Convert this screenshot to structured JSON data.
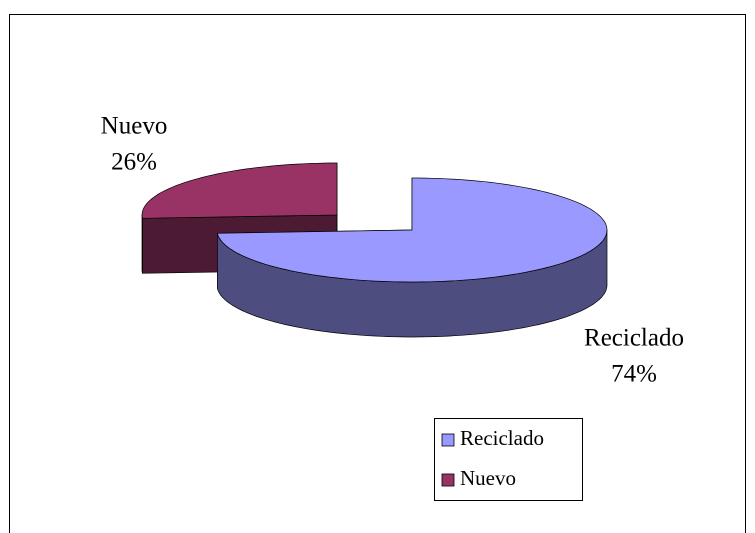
{
  "chart_data": {
    "type": "pie",
    "categories": [
      "Reciclado",
      "Nuevo"
    ],
    "values": [
      74,
      26
    ],
    "value_labels": [
      "74%",
      "26%"
    ],
    "colors": [
      "#9999ff",
      "#993366"
    ],
    "legend": "bottom-right"
  }
}
